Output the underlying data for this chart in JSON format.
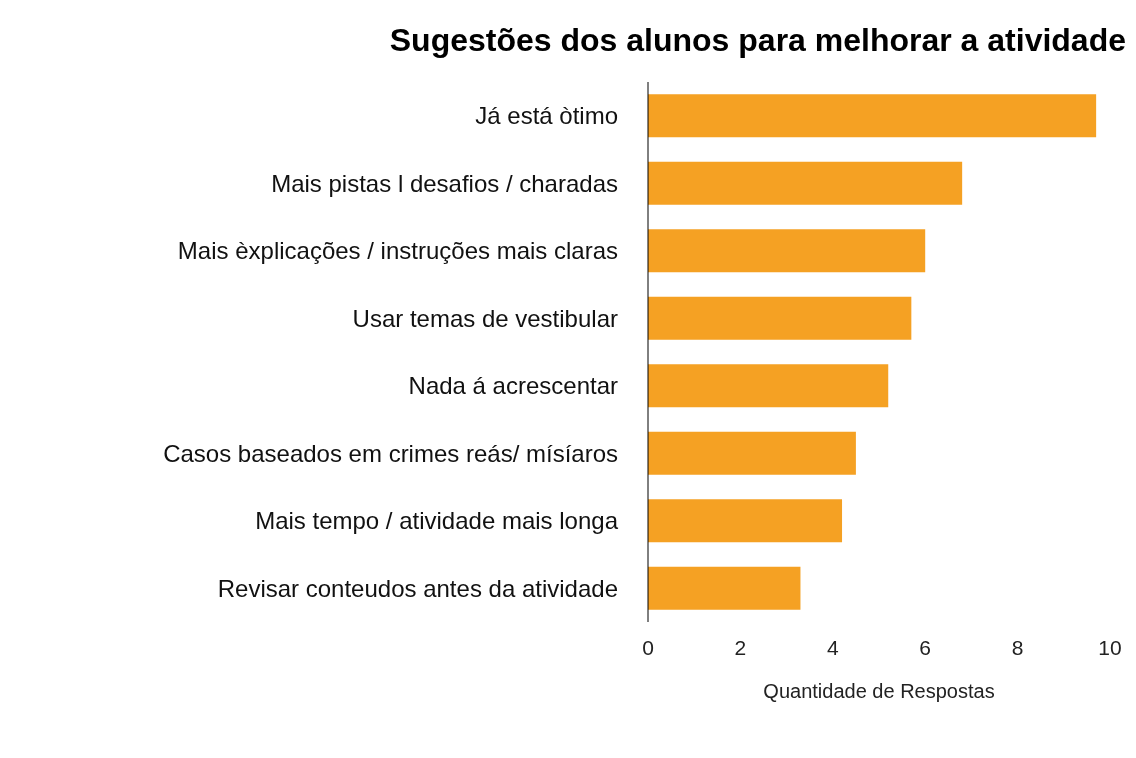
{
  "chart_data": {
    "type": "bar",
    "orientation": "horizontal",
    "title": "Sugestões dos alunos para melhorar a atividade",
    "xlabel": "Quantidade de Respostas",
    "categories": [
      "Já está òtimo",
      "Mais pistas l desafios / charadas",
      "Mais èxplicações / instruções   mais claras",
      "Usar temas de vestibular",
      "Nada á acrescentar",
      "Casos baseados em crimes reás/ mísíaros",
      "Mais tempo / atividade mais longa",
      "Revisar conteudos antes da atividade"
    ],
    "values": [
      9.7,
      6.8,
      6.0,
      5.7,
      5.2,
      4.5,
      4.2,
      3.3
    ],
    "color": "#f5a123",
    "xlim": [
      0,
      10
    ],
    "xticks": [
      0,
      2,
      4,
      6,
      8,
      10
    ],
    "grid": false,
    "legend": false
  }
}
